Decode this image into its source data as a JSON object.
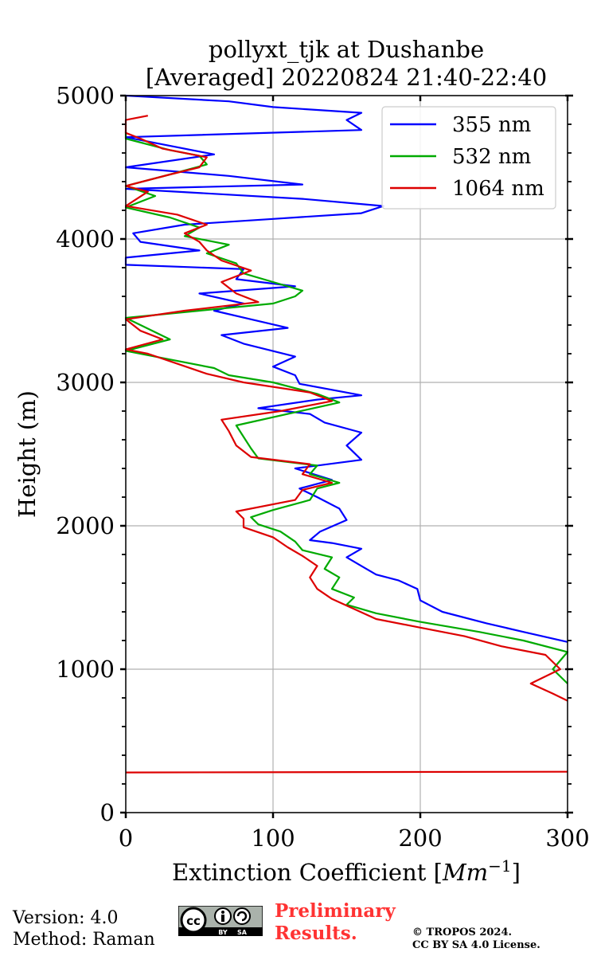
{
  "chart_data": {
    "type": "line",
    "title": "pollyxt_tjk at Dushanbe",
    "subtitle": "[Averaged] 20220824 21:40-22:40",
    "xlabel": "Extinction Coefficient [Mm⁻¹]",
    "ylabel": "Height (m)",
    "xlim": [
      0,
      300
    ],
    "ylim": [
      0,
      5000
    ],
    "x_ticks": [
      "0",
      "100",
      "200",
      "300"
    ],
    "y_ticks": [
      "0",
      "1000",
      "2000",
      "3000",
      "4000",
      "5000"
    ],
    "grid": true,
    "legend_position": "top-right",
    "series": [
      {
        "name": "355 nm",
        "color": "#0000ff",
        "points": [
          [
            300,
            1190
          ],
          [
            270,
            1260
          ],
          [
            245,
            1320
          ],
          [
            215,
            1400
          ],
          [
            200,
            1480
          ],
          [
            198,
            1560
          ],
          [
            185,
            1620
          ],
          [
            170,
            1660
          ],
          [
            160,
            1720
          ],
          [
            150,
            1780
          ],
          [
            160,
            1840
          ],
          [
            140,
            1880
          ],
          [
            125,
            1900
          ],
          [
            132,
            1960
          ],
          [
            150,
            2040
          ],
          [
            145,
            2120
          ],
          [
            130,
            2200
          ],
          [
            118,
            2260
          ],
          [
            140,
            2320
          ],
          [
            115,
            2400
          ],
          [
            160,
            2460
          ],
          [
            150,
            2560
          ],
          [
            160,
            2650
          ],
          [
            135,
            2720
          ],
          [
            125,
            2780
          ],
          [
            90,
            2820
          ],
          [
            130,
            2880
          ],
          [
            160,
            2910
          ],
          [
            118,
            2990
          ],
          [
            115,
            3050
          ],
          [
            100,
            3110
          ],
          [
            115,
            3180
          ],
          [
            80,
            3270
          ],
          [
            65,
            3330
          ],
          [
            110,
            3380
          ],
          [
            85,
            3440
          ],
          [
            60,
            3500
          ],
          [
            80,
            3550
          ],
          [
            50,
            3620
          ],
          [
            115,
            3670
          ],
          [
            75,
            3720
          ],
          [
            80,
            3790
          ],
          [
            0,
            3820
          ],
          [
            0,
            3870
          ],
          [
            50,
            3920
          ],
          [
            10,
            3980
          ],
          [
            5,
            4040
          ],
          [
            40,
            4100
          ],
          [
            100,
            4140
          ],
          [
            160,
            4180
          ],
          [
            175,
            4230
          ],
          [
            120,
            4280
          ],
          [
            0,
            4350
          ],
          [
            120,
            4380
          ],
          [
            70,
            4440
          ],
          [
            0,
            4500
          ],
          [
            60,
            4590
          ],
          [
            0,
            4710
          ],
          [
            160,
            4760
          ],
          [
            150,
            4830
          ],
          [
            160,
            4880
          ],
          [
            100,
            4920
          ],
          [
            70,
            4960
          ],
          [
            0,
            5000
          ]
        ]
      },
      {
        "name": "532 nm",
        "color": "#00aa00",
        "points": [
          [
            300,
            900
          ],
          [
            290,
            1000
          ],
          [
            300,
            1120
          ],
          [
            270,
            1200
          ],
          [
            240,
            1260
          ],
          [
            200,
            1330
          ],
          [
            170,
            1390
          ],
          [
            150,
            1450
          ],
          [
            155,
            1500
          ],
          [
            140,
            1560
          ],
          [
            145,
            1640
          ],
          [
            135,
            1700
          ],
          [
            140,
            1780
          ],
          [
            120,
            1830
          ],
          [
            115,
            1890
          ],
          [
            105,
            1960
          ],
          [
            90,
            2010
          ],
          [
            85,
            2060
          ],
          [
            100,
            2110
          ],
          [
            125,
            2180
          ],
          [
            130,
            2260
          ],
          [
            145,
            2300
          ],
          [
            125,
            2360
          ],
          [
            130,
            2420
          ],
          [
            90,
            2470
          ],
          [
            85,
            2540
          ],
          [
            80,
            2620
          ],
          [
            75,
            2700
          ],
          [
            110,
            2780
          ],
          [
            145,
            2860
          ],
          [
            130,
            2920
          ],
          [
            100,
            3000
          ],
          [
            70,
            3050
          ],
          [
            60,
            3100
          ],
          [
            25,
            3170
          ],
          [
            0,
            3220
          ],
          [
            30,
            3300
          ],
          [
            10,
            3400
          ],
          [
            0,
            3450
          ],
          [
            50,
            3500
          ],
          [
            100,
            3550
          ],
          [
            115,
            3600
          ],
          [
            120,
            3640
          ],
          [
            100,
            3700
          ],
          [
            80,
            3760
          ],
          [
            75,
            3830
          ],
          [
            55,
            3900
          ],
          [
            70,
            3960
          ],
          [
            40,
            4020
          ],
          [
            50,
            4080
          ],
          [
            30,
            4150
          ],
          [
            0,
            4220
          ],
          [
            20,
            4300
          ],
          [
            0,
            4370
          ],
          [
            30,
            4450
          ],
          [
            55,
            4520
          ],
          [
            50,
            4580
          ],
          [
            30,
            4620
          ],
          [
            0,
            4700
          ],
          [
            0,
            4750
          ]
        ]
      },
      {
        "name": "1064 nm",
        "color": "#dd0000",
        "points": [
          [
            300,
            780
          ],
          [
            290,
            830
          ],
          [
            275,
            900
          ],
          [
            295,
            1000
          ],
          [
            285,
            1100
          ],
          [
            255,
            1160
          ],
          [
            230,
            1230
          ],
          [
            200,
            1290
          ],
          [
            170,
            1350
          ],
          [
            155,
            1420
          ],
          [
            140,
            1490
          ],
          [
            130,
            1560
          ],
          [
            125,
            1640
          ],
          [
            130,
            1720
          ],
          [
            120,
            1790
          ],
          [
            110,
            1850
          ],
          [
            100,
            1920
          ],
          [
            80,
            1990
          ],
          [
            80,
            2050
          ],
          [
            75,
            2100
          ],
          [
            115,
            2180
          ],
          [
            120,
            2250
          ],
          [
            140,
            2300
          ],
          [
            120,
            2360
          ],
          [
            125,
            2430
          ],
          [
            85,
            2480
          ],
          [
            75,
            2560
          ],
          [
            70,
            2660
          ],
          [
            65,
            2740
          ],
          [
            105,
            2800
          ],
          [
            140,
            2870
          ],
          [
            125,
            2930
          ],
          [
            80,
            3000
          ],
          [
            55,
            3060
          ],
          [
            35,
            3130
          ],
          [
            15,
            3200
          ],
          [
            0,
            3230
          ],
          [
            25,
            3300
          ],
          [
            10,
            3360
          ],
          [
            0,
            3440
          ],
          [
            40,
            3500
          ],
          [
            90,
            3560
          ],
          [
            75,
            3620
          ],
          [
            65,
            3700
          ],
          [
            85,
            3780
          ],
          [
            65,
            3850
          ],
          [
            55,
            3920
          ],
          [
            50,
            3980
          ],
          [
            40,
            4040
          ],
          [
            55,
            4100
          ],
          [
            35,
            4170
          ],
          [
            0,
            4230
          ],
          [
            15,
            4330
          ],
          [
            0,
            4370
          ],
          [
            30,
            4450
          ],
          [
            50,
            4500
          ],
          [
            55,
            4570
          ],
          [
            25,
            4630
          ],
          [
            10,
            4700
          ],
          [
            0,
            4740
          ],
          [
            0,
            4830
          ],
          [
            15,
            4860
          ]
        ]
      },
      {
        "name": "",
        "color": "#dd0000",
        "points": [
          [
            0,
            280
          ],
          [
            300,
            285
          ]
        ]
      }
    ]
  },
  "footer": {
    "version": "Version: 4.0",
    "method": "Method: Raman",
    "preliminary_line1": "Preliminary",
    "preliminary_line2": "Results.",
    "copyright_line1": "© TROPOS 2024.",
    "copyright_line2": "CC BY SA 4.0 License.",
    "license_badge": "cc-by-sa-icon"
  }
}
